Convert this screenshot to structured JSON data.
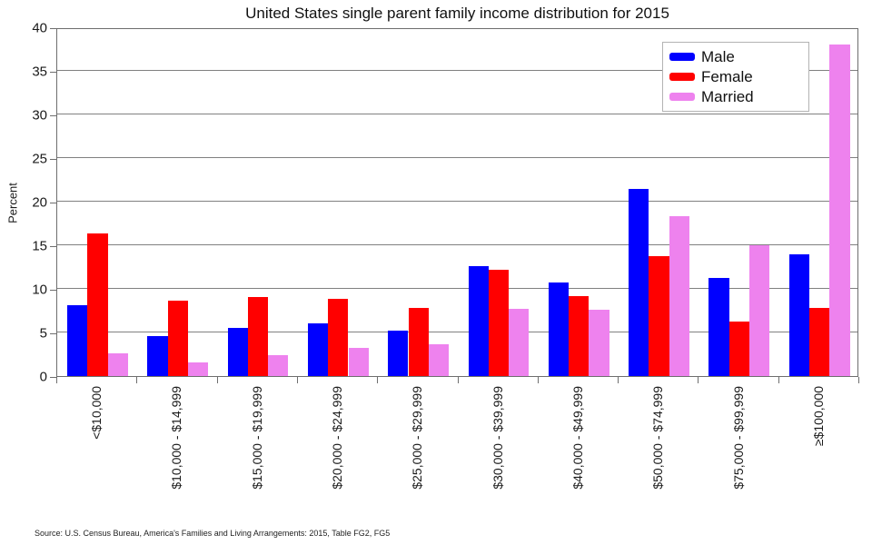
{
  "title": "United States single parent family income distribution for 2015",
  "source_note": "Source: U.S. Census Bureau, America's Families and Living Arrangements: 2015, Table FG2, FG5",
  "colors": {
    "male": "#0000FF",
    "female": "#FF0000",
    "married": "#EE82EE",
    "gridline": "#808080",
    "frame": "#6e6e6e"
  },
  "chart_data": {
    "type": "bar",
    "title": "United States single parent family income distribution for 2015",
    "xlabel": "",
    "ylabel": "Percent",
    "ylim": [
      0,
      40
    ],
    "ytick_interval": 5,
    "grid": true,
    "legend_position": "upper right",
    "categories": [
      "<$10,000",
      "$10,000 - $14,999",
      "$15,000 - $19,999",
      "$20,000 - $24,999",
      "$25,000 - $29,999",
      "$30,000 - $39,999",
      "$40,000 - $49,999",
      "$50,000 - $74,999",
      "$75,000 - $99,999",
      "≥$100,000"
    ],
    "series": [
      {
        "name": "Male",
        "color": "#0000FF",
        "values": [
          8.1,
          4.6,
          5.5,
          6.0,
          5.2,
          12.6,
          10.7,
          21.5,
          11.3,
          14.0
        ]
      },
      {
        "name": "Female",
        "color": "#FF0000",
        "values": [
          16.4,
          8.6,
          9.1,
          8.9,
          7.8,
          12.2,
          9.2,
          13.8,
          6.2,
          7.8
        ]
      },
      {
        "name": "Married",
        "color": "#EE82EE",
        "values": [
          2.6,
          1.6,
          2.4,
          3.2,
          3.6,
          7.7,
          7.6,
          18.3,
          15.0,
          38.0
        ]
      }
    ]
  }
}
